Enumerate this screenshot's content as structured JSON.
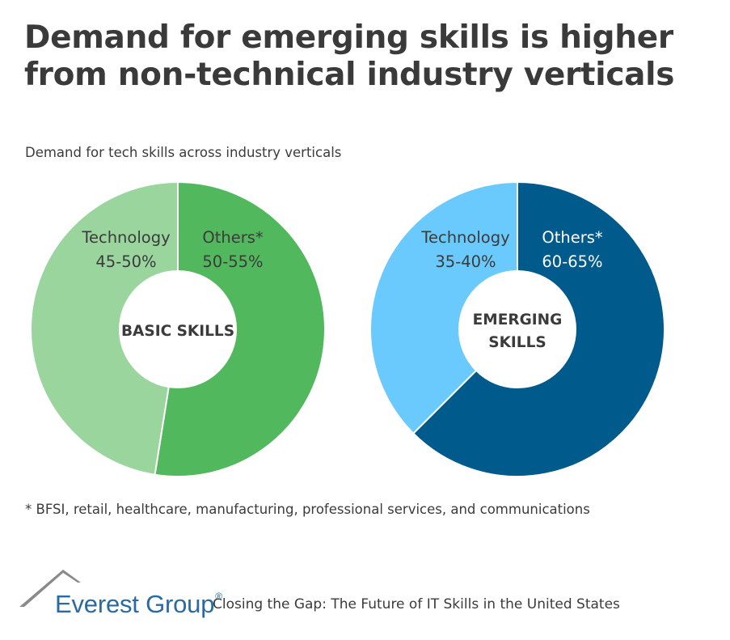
{
  "header": {
    "title_line1": "Demand for emerging skills is higher",
    "title_line2": "from non-technical industry verticals",
    "subtitle": "Demand for tech skills across industry verticals"
  },
  "chart_data": [
    {
      "type": "pie",
      "variant": "donut",
      "center_label": [
        "BASIC SKILLS"
      ],
      "slices": [
        {
          "name": "Others*",
          "range_label": "50-55%",
          "value": 52.5,
          "color": "#52b85e"
        },
        {
          "name": "Technology",
          "range_label": "45-50%",
          "value": 47.5,
          "color": "#9ad59e"
        }
      ]
    },
    {
      "type": "pie",
      "variant": "donut",
      "center_label": [
        "EMERGING",
        "SKILLS"
      ],
      "slices": [
        {
          "name": "Others*",
          "range_label": "60-65%",
          "value": 62.5,
          "color": "#005a8c"
        },
        {
          "name": "Technology",
          "range_label": "35-40%",
          "value": 37.5,
          "color": "#6ac9fd"
        }
      ]
    }
  ],
  "footnote": "* BFSI, retail, healthcare, manufacturing, professional services, and communications",
  "footer": {
    "brand": "Everest Group",
    "brand_mark": "®",
    "tagline": "Closing the Gap: The Future of IT Skills in the United States"
  }
}
